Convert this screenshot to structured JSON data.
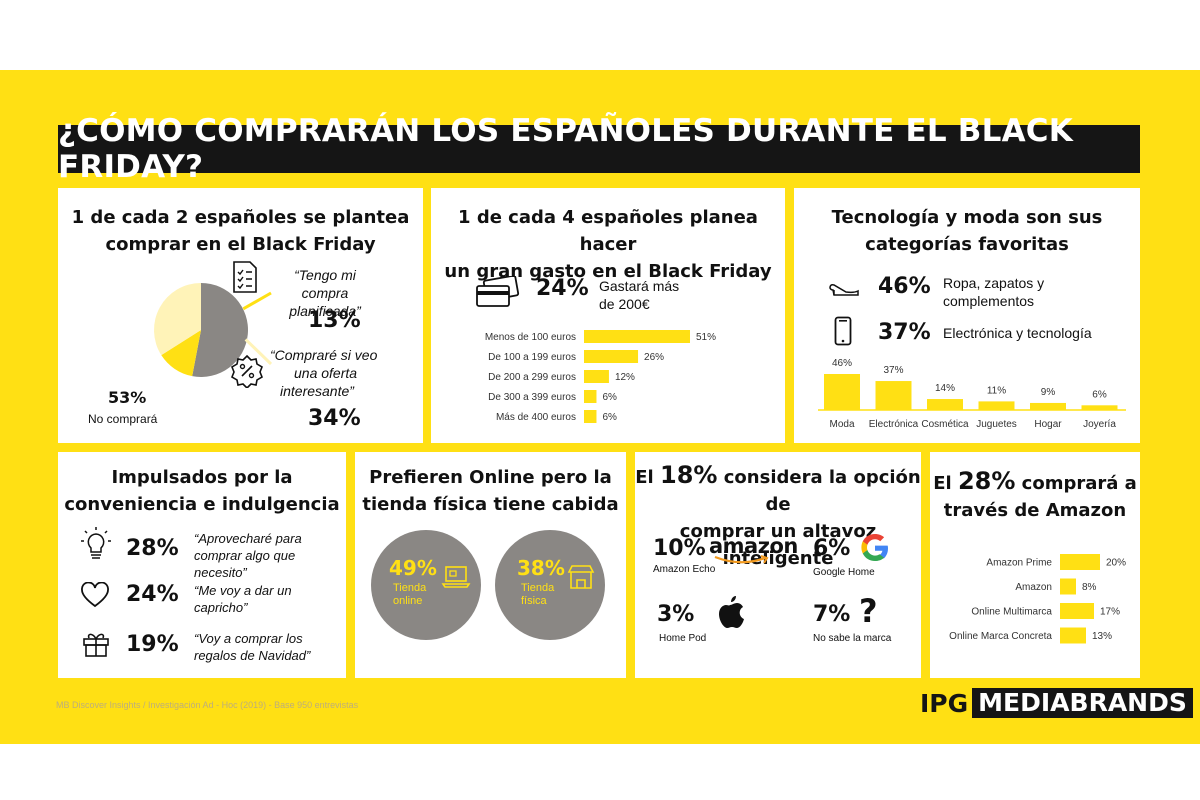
{
  "title": "¿CÓMO COMPRARÁN LOS ESPAÑOLES DURANTE EL BLACK FRIDAY?",
  "colors": {
    "yellow": "#FFE014",
    "dark": "#151515",
    "grey": "#8A8784"
  },
  "p1": {
    "heading1": "1 de cada 2 españoles se plantea",
    "heading2": "comprar en el Black Friday",
    "no_pct": "53%",
    "no_label": "No comprará",
    "q1a": "“Tengo mi compra",
    "q1b": "planificada”",
    "q1_pct": "13%",
    "q2a": "“Compraré si veo",
    "q2b": "una oferta",
    "q2c": "interesante”",
    "q2_pct": "34%"
  },
  "p2": {
    "heading1": "1 de cada 4 españoles planea hacer",
    "heading2": "un gran gasto en el Black Friday",
    "big_pct": "24%",
    "big_text1": "Gastará más",
    "big_text2": "de 200€"
  },
  "p3": {
    "heading1": "Tecnología y moda son sus",
    "heading2": "categorías favoritas",
    "s1_pct": "46%",
    "s1_text1": "Ropa, zapatos y",
    "s1_text2": "complementos",
    "s2_pct": "37%",
    "s2_text": "Electrónica y tecnología"
  },
  "p4": {
    "heading1": "Impulsados por la",
    "heading2": "conveniencia e indulgencia",
    "r1_pct": "28%",
    "r1_a": "“Aprovecharé para",
    "r1_b": "comprar algo que",
    "r1_c": "necesito”",
    "r2_pct": "24%",
    "r2_a": "“Me voy a dar un",
    "r2_b": "capricho”",
    "r3_pct": "19%",
    "r3_a": "“Voy a comprar los",
    "r3_b": "regalos de Navidad”"
  },
  "p5": {
    "heading1": "Prefieren Online pero la",
    "heading2": "tienda física tiene cabida",
    "c1_pct": "49%",
    "c1_a": "Tienda",
    "c1_b": "online",
    "c2_pct": "38%",
    "c2_a": "Tienda",
    "c2_b": "física"
  },
  "p6": {
    "heading_pre": "El",
    "heading_pct": "18%",
    "heading_post": "considera la opción de",
    "heading2": "comprar un altavoz inteligente",
    "b1_pct": "10%",
    "b1_brand": "amazon",
    "b1_label": "Amazon Echo",
    "b2_pct": "6%",
    "b2_label": "Google Home",
    "b3_pct": "3%",
    "b3_label": "Home Pod",
    "b4_pct": "7%",
    "b4_label": "No sabe la marca"
  },
  "p7": {
    "heading_pre": "El",
    "heading_pct": "28%",
    "heading_post": "comprará a",
    "heading2": "través de Amazon"
  },
  "footer": "MB Discover Insights / Investigación Ad - Hoc (2019) - Base 950 entrevistas",
  "logo": {
    "ipg": "IPG",
    "mb": "MEDIABRANDS"
  },
  "chart_data": [
    {
      "type": "pie",
      "categories": [
        "No comprará",
        "Tengo mi compra planificada",
        "Compraré si veo una oferta interesante"
      ],
      "values": [
        53,
        13,
        34
      ]
    },
    {
      "type": "bar",
      "categories": [
        "Menos de 100 euros",
        "De 100 a 199 euros",
        "De 200 a 299 euros",
        "De 300 a 399 euros",
        "Más de 400 euros"
      ],
      "values": [
        51,
        26,
        12,
        6,
        6
      ],
      "labels": [
        "51%",
        "26%",
        "12%",
        "6%",
        "6%"
      ]
    },
    {
      "type": "bar",
      "categories": [
        "Moda",
        "Electrónica",
        "Cosmética",
        "Juguetes",
        "Hogar",
        "Joyería"
      ],
      "values": [
        46,
        37,
        14,
        11,
        9,
        6
      ],
      "labels": [
        "46%",
        "37%",
        "14%",
        "11%",
        "9%",
        "6%"
      ]
    },
    {
      "type": "bar",
      "categories": [
        "Amazon Prime",
        "Amazon",
        "Online Multimarca",
        "Online Marca Concreta"
      ],
      "values": [
        20,
        8,
        17,
        13
      ],
      "labels": [
        "20%",
        "8%",
        "17%",
        "13%"
      ]
    }
  ]
}
